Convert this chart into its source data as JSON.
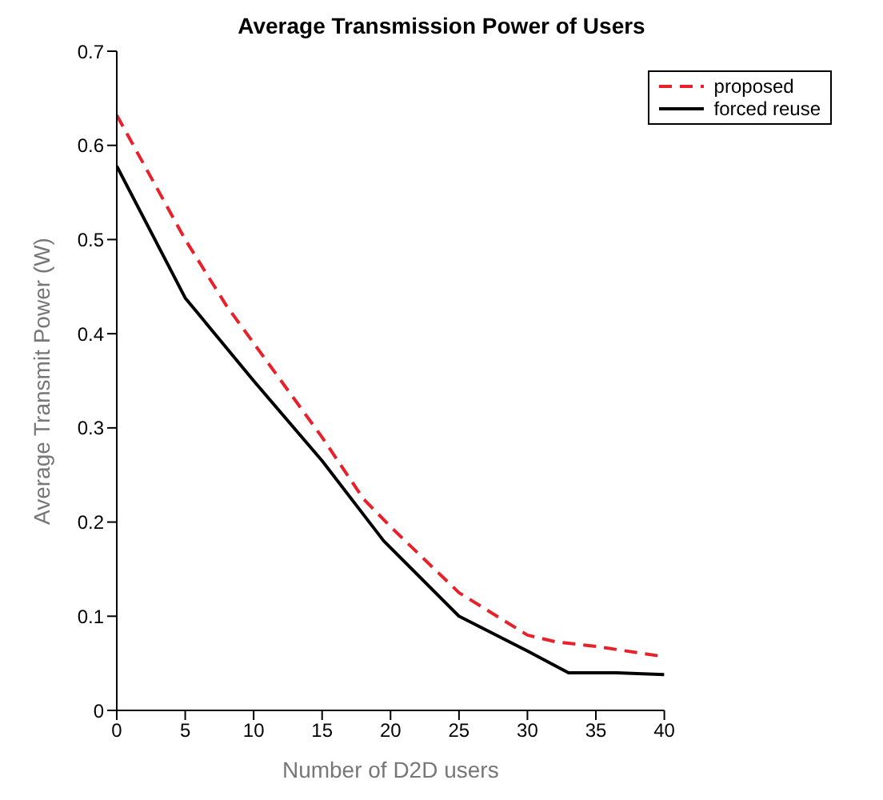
{
  "chart_data": {
    "type": "line",
    "title": "Average Transmission Power of Users",
    "xlabel": "Number of D2D users",
    "ylabel": "Average Transmit Power (W)",
    "xlim": [
      0,
      40
    ],
    "xticks": [
      0,
      5,
      10,
      15,
      20,
      25,
      30,
      35,
      40
    ],
    "ylim": [
      0,
      0.7
    ],
    "yticks": [
      0,
      0.1,
      0.2,
      0.3,
      0.4,
      0.5,
      0.6,
      0.7
    ],
    "grid": false,
    "legend": "top right",
    "marker": "none",
    "series": [
      {
        "name": "proposed",
        "color": "#e8202a",
        "line_style": "dashed",
        "x": [
          0,
          5,
          8,
          10,
          15,
          18,
          20,
          25,
          30,
          32,
          35,
          40
        ],
        "values": [
          0.632,
          0.5,
          0.43,
          0.39,
          0.29,
          0.225,
          0.195,
          0.125,
          0.08,
          0.073,
          0.068,
          0.057
        ]
      },
      {
        "name": "forced reuse",
        "color": "#000000",
        "line_style": "solid",
        "x": [
          0,
          5,
          10,
          15,
          19.5,
          25,
          30,
          33,
          36.5,
          40
        ],
        "values": [
          0.578,
          0.438,
          0.35,
          0.265,
          0.18,
          0.1,
          0.063,
          0.04,
          0.04,
          0.038
        ]
      }
    ]
  }
}
